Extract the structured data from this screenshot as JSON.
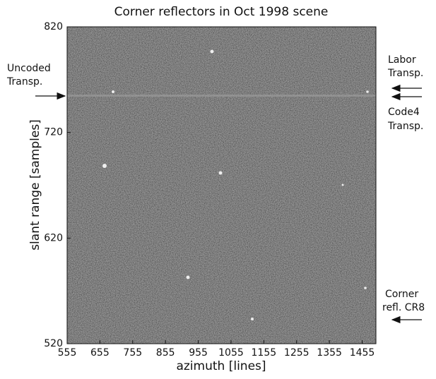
{
  "chart_data": {
    "type": "image",
    "title": "Corner reflectors in Oct 1998 scene",
    "x_label": "azimuth [lines]",
    "y_label": "slant range [samples]",
    "xlim": [
      555,
      1497
    ],
    "xticks": [
      555,
      655,
      755,
      855,
      955,
      1055,
      1155,
      1255,
      1355,
      1455
    ],
    "ylim": [
      520,
      820
    ],
    "yticks": [
      520,
      620,
      720,
      820
    ],
    "annotations": [
      {
        "lines": [
          "Uncoded",
          "Transp."
        ]
      },
      {
        "lines": [
          "Labor",
          "Transp."
        ]
      },
      {
        "lines": [
          "Code4",
          "Transp."
        ]
      },
      {
        "lines": [
          "Corner",
          "refl. CR8"
        ]
      }
    ]
  }
}
